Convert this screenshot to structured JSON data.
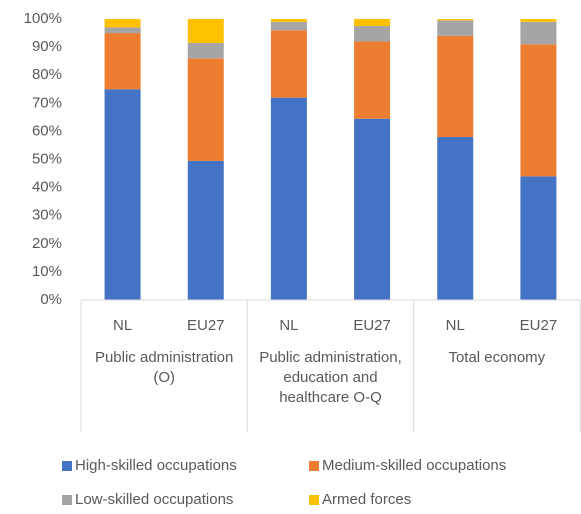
{
  "chart_data": {
    "type": "stacked_bar",
    "categories": [
      "NL",
      "EU27",
      "NL",
      "EU27",
      "NL",
      "EU27"
    ],
    "groups": [
      "Public administration (O)",
      "Public administration, education and healthcare O-Q",
      "Total economy"
    ],
    "series": [
      {
        "name": "High-skilled occupations",
        "color": "#4472c4",
        "values": [
          75,
          49.5,
          72,
          64.5,
          58,
          44
        ]
      },
      {
        "name": "Medium-skilled occupations",
        "color": "#ed7d31",
        "values": [
          20,
          36.5,
          24,
          27.5,
          36,
          47
        ]
      },
      {
        "name": "Low-skilled occupations",
        "color": "#a5a5a5",
        "values": [
          2,
          5.5,
          3,
          5.5,
          5.5,
          8
        ]
      },
      {
        "name": "Armed forces",
        "color": "#ffc000",
        "values": [
          3,
          8.5,
          1,
          2.5,
          0.5,
          1
        ]
      }
    ],
    "ylim": [
      0,
      100
    ],
    "yticks": [
      {
        "value": 0,
        "label": "0%"
      },
      {
        "value": 10,
        "label": "10%"
      },
      {
        "value": 20,
        "label": "20%"
      },
      {
        "value": 30,
        "label": "30%"
      },
      {
        "value": 40,
        "label": "40%"
      },
      {
        "value": 50,
        "label": "50%"
      },
      {
        "value": 60,
        "label": "60%"
      },
      {
        "value": 70,
        "label": "70%"
      },
      {
        "value": 80,
        "label": "80%"
      },
      {
        "value": 90,
        "label": "90%"
      },
      {
        "value": 100,
        "label": "100%"
      }
    ],
    "grid": false,
    "legend": "bottom"
  }
}
